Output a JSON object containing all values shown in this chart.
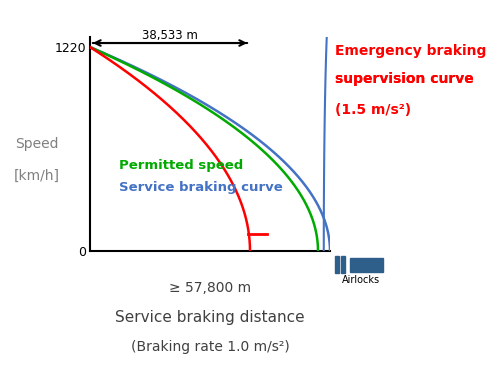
{
  "speed_max_kmh": 1220,
  "service_braking_rate": 1.0,
  "emergency_braking_rate": 1.5,
  "service_braking_distance": 57800,
  "emergency_braking_distance": 38533,
  "speed_label_line1": "Speed",
  "speed_label_line2": "[km/h]",
  "service_color": "#4472C4",
  "permitted_color": "#00AA00",
  "emergency_color": "#FF0000",
  "airlock_color": "#2E5F8A",
  "annotation_38533": "38,533 m",
  "label_permitted": "Permitted speed",
  "label_service": "Service braking curve",
  "label_emergency_line1": "Emergency braking",
  "label_emergency_line2": "supervision curve",
  "label_emergency_line3": "(1.5 m/s²)",
  "label_airlocks": "Airlocks",
  "xlabel_line1": "≥ 57,800 m",
  "xlabel_line2": "Service braking distance",
  "xlabel_line3": "(Braking rate 1.0 m/s²)",
  "bg_color": "#FFFFFF"
}
